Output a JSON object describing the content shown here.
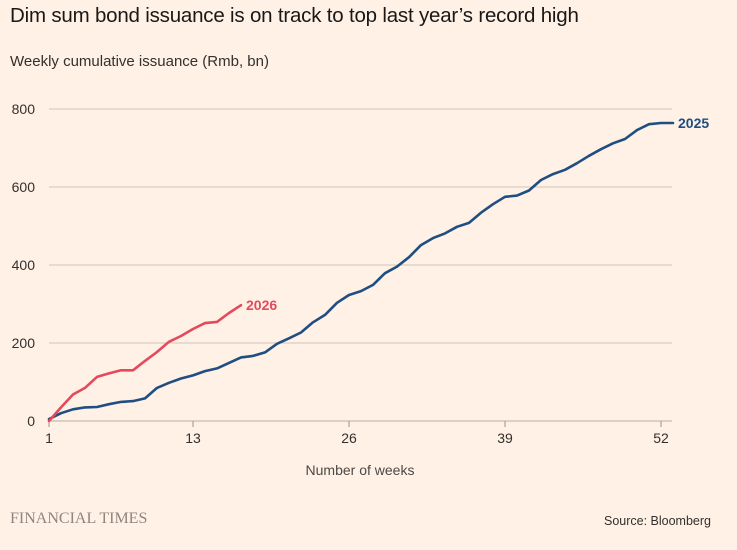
{
  "header": {
    "title": "Dim sum bond issuance is on track to top last year’s record high",
    "subtitle": "Weekly cumulative issuance (Rmb, bn)"
  },
  "footer": {
    "brand": "FINANCIAL TIMES",
    "source": "Source: Bloomberg"
  },
  "chart_data": {
    "type": "line",
    "title": "Dim sum bond issuance is on track to top last year’s record high",
    "subtitle": "Weekly cumulative issuance (Rmb, bn)",
    "xlabel": "Number of weeks",
    "ylabel": "Weekly cumulative issuance (Rmb, bn)",
    "xlim": [
      1,
      53
    ],
    "ylim": [
      0,
      800
    ],
    "x_ticks": [
      1,
      13,
      26,
      39,
      52
    ],
    "y_ticks": [
      0,
      200,
      400,
      600,
      800
    ],
    "grid": "horizontal",
    "legend": "inline labels at line ends",
    "series": [
      {
        "name": "2025",
        "color": "#1f4e82",
        "x": [
          1,
          2,
          3,
          4,
          5,
          6,
          7,
          8,
          9,
          10,
          11,
          12,
          13,
          14,
          15,
          16,
          17,
          18,
          19,
          20,
          21,
          22,
          23,
          24,
          25,
          26,
          27,
          28,
          29,
          30,
          31,
          32,
          33,
          34,
          35,
          36,
          37,
          38,
          39,
          40,
          41,
          42,
          43,
          44,
          45,
          46,
          47,
          48,
          49,
          50,
          51,
          52,
          53
        ],
        "values": [
          5,
          20,
          30,
          35,
          36,
          43,
          49,
          51,
          58,
          85,
          98,
          109,
          117,
          128,
          135,
          149,
          163,
          167,
          176,
          198,
          212,
          227,
          253,
          272,
          303,
          323,
          333,
          349,
          379,
          396,
          420,
          451,
          469,
          481,
          498,
          508,
          534,
          556,
          575,
          578,
          591,
          618,
          633,
          644,
          661,
          680,
          697,
          712,
          723,
          746,
          761,
          764,
          764
        ]
      },
      {
        "name": "2026",
        "color": "#e34a5b",
        "x": [
          1,
          2,
          3,
          4,
          5,
          6,
          7,
          8,
          9,
          10,
          11,
          12,
          13,
          14,
          15,
          16,
          17
        ],
        "values": [
          0,
          35,
          68,
          85,
          113,
          122,
          130,
          130,
          154,
          177,
          203,
          218,
          236,
          251,
          254,
          277,
          297
        ]
      }
    ]
  }
}
